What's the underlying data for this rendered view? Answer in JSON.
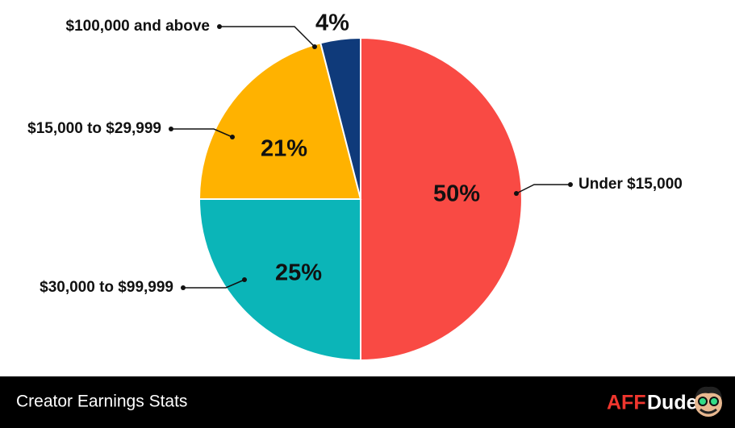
{
  "chart_data": {
    "type": "pie",
    "categories": [
      "Under $15,000",
      "$30,000 to $99,999",
      "$15,000 to $29,999",
      "$100,000 and above"
    ],
    "values": [
      50,
      25,
      21,
      4
    ],
    "value_labels": [
      "50%",
      "25%",
      "21%",
      "4%"
    ],
    "colors": [
      "#f94a44",
      "#0bb5b8",
      "#ffb200",
      "#0f3a7a"
    ]
  },
  "footer": {
    "title": "Creator Earnings Stats",
    "logo_accent": "AFF",
    "logo_text": "Dude"
  }
}
